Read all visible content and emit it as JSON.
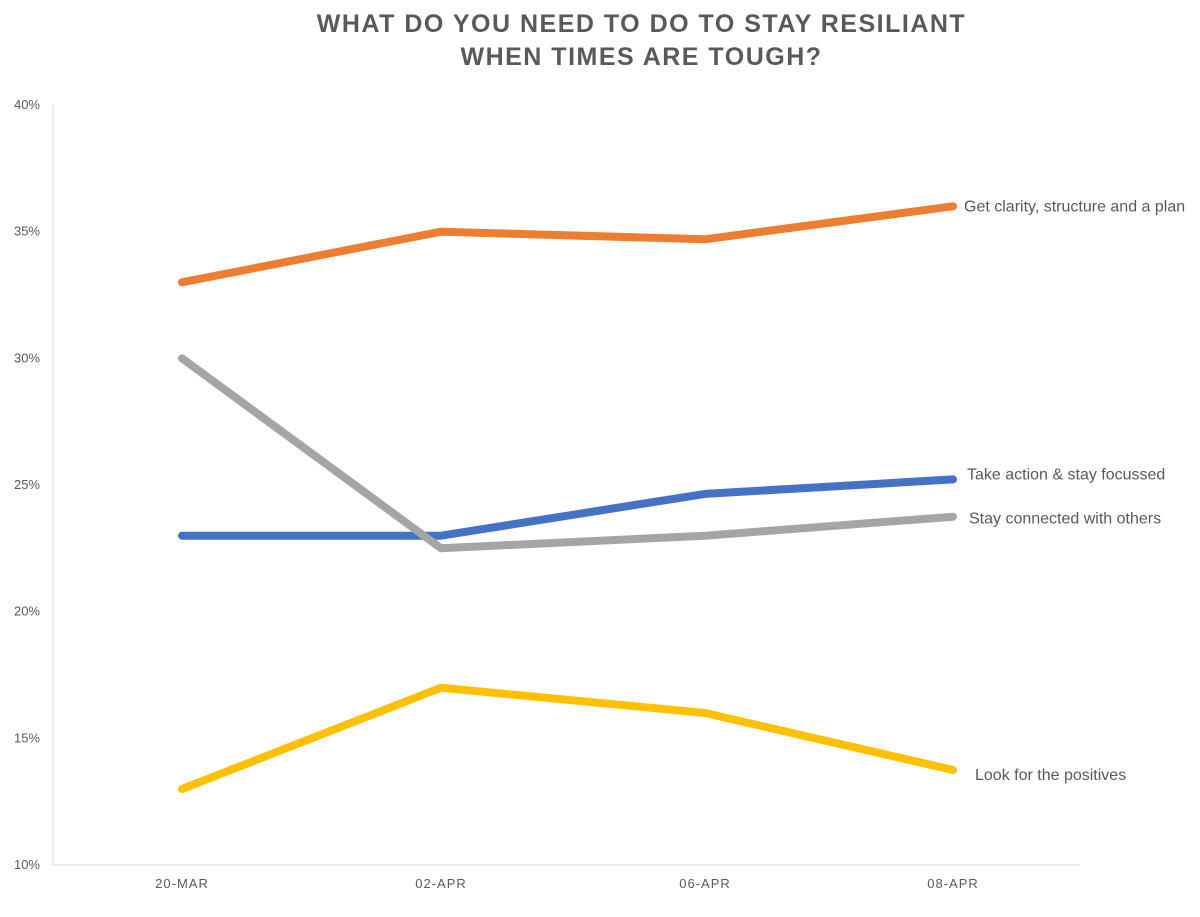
{
  "chart_data": {
    "type": "line",
    "title_lines": [
      "WHAT DO YOU NEED TO DO TO STAY RESILIANT",
      "WHEN TIMES ARE TOUGH?"
    ],
    "categories": [
      "20-MAR",
      "02-APR",
      "06-APR",
      "08-APR"
    ],
    "ylim": [
      0.1,
      0.4
    ],
    "yticks": [
      {
        "value": 0.4,
        "label": "40%"
      },
      {
        "value": 0.35,
        "label": "35%"
      },
      {
        "value": 0.3,
        "label": "30%"
      },
      {
        "value": 0.25,
        "label": "25%"
      },
      {
        "value": 0.2,
        "label": "20%"
      },
      {
        "value": 0.15,
        "label": "15%"
      },
      {
        "value": 0.1,
        "label": "10%"
      }
    ],
    "grid": false,
    "legend": "direct labels at line ends",
    "series": [
      {
        "name": "Get clarity, structure and a plan",
        "color": "#ED7D31",
        "values": [
          0.33,
          0.35,
          0.347,
          0.36
        ]
      },
      {
        "name": "Take action & stay focussed",
        "color": "#4472C4",
        "values": [
          0.23,
          0.23,
          0.2465,
          0.2522
        ]
      },
      {
        "name": "Stay connected with others",
        "color": "#A5A5A5",
        "values": [
          0.3,
          0.225,
          0.23,
          0.2375
        ]
      },
      {
        "name": "Look for the positives",
        "color": "#FFC000",
        "values": [
          0.13,
          0.17,
          0.16,
          0.1375
        ]
      }
    ]
  }
}
